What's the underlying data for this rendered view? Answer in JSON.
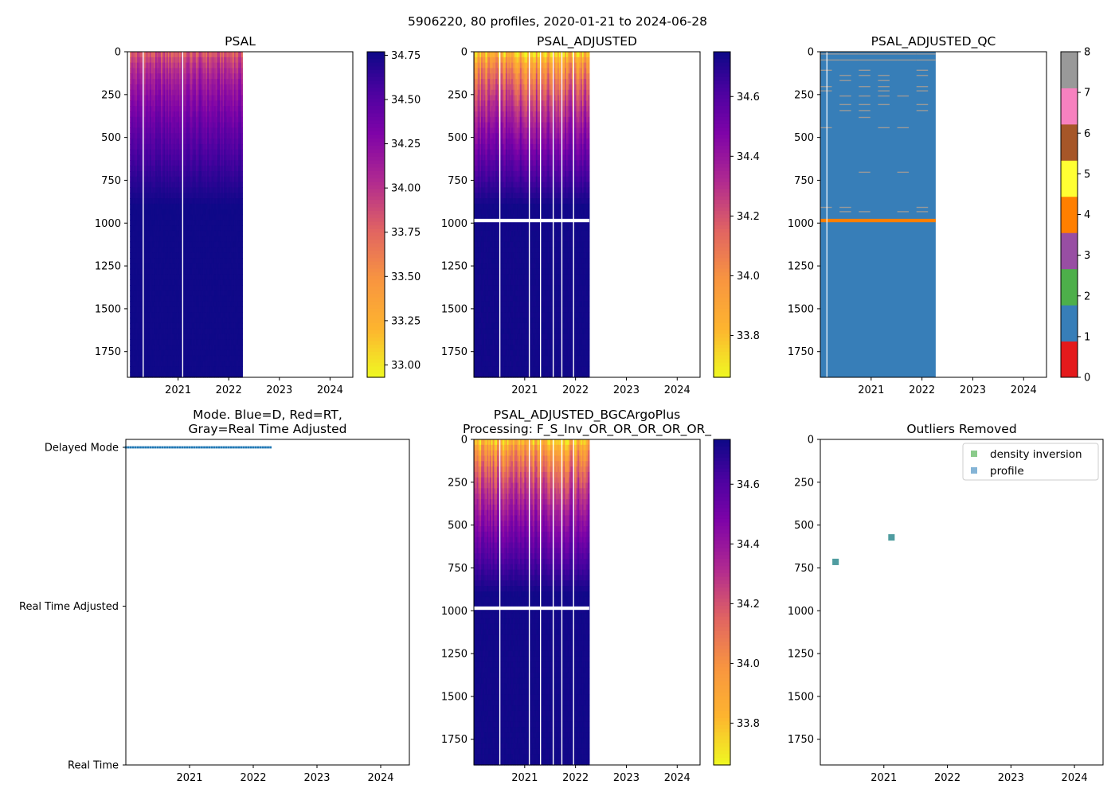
{
  "figure_title": "5906220, 80 profiles, 2020-01-21 to 2024-06-28",
  "chart_data": [
    {
      "type": "heatmap",
      "title": "PSAL",
      "x_range": [
        2020.0,
        2024.45
      ],
      "xticks": [
        "2021",
        "2022",
        "2023",
        "2024"
      ],
      "y_range": [
        0,
        1900
      ],
      "yticks": [
        "0",
        "250",
        "500",
        "750",
        "1000",
        "1250",
        "1500",
        "1750"
      ],
      "data_time_range": [
        2020.05,
        2022.27
      ],
      "colormap": "plasma_r",
      "color_range": [
        32.93,
        34.77
      ],
      "colorbar_ticks": [
        "33.00",
        "33.25",
        "33.50",
        "33.75",
        "34.00",
        "34.25",
        "34.50",
        "34.75"
      ],
      "gap_times": [
        2020.3,
        2021.08
      ],
      "surface_value": 33.7,
      "deep_value": 34.76
    },
    {
      "type": "heatmap",
      "title": "PSAL_ADJUSTED",
      "x_range": [
        2020.0,
        2024.45
      ],
      "xticks": [
        "2021",
        "2022",
        "2023",
        "2024"
      ],
      "y_range": [
        0,
        1900
      ],
      "yticks": [
        "0",
        "250",
        "500",
        "750",
        "1000",
        "1250",
        "1500",
        "1750"
      ],
      "data_time_range": [
        2020.0,
        2022.27
      ],
      "colormap": "plasma_r",
      "color_range": [
        33.66,
        34.75
      ],
      "colorbar_ticks": [
        "33.8",
        "34.0",
        "34.2",
        "34.4",
        "34.6"
      ],
      "gap_times": [
        2020.5,
        2021.08,
        2021.3,
        2021.55,
        2021.72,
        2021.95
      ],
      "missing_depth_band": [
        975,
        995
      ],
      "surface_value": 33.7,
      "deep_value": 34.74
    },
    {
      "type": "heatmap",
      "title": "PSAL_ADJUSTED_QC",
      "x_range": [
        2020.0,
        2024.45
      ],
      "xticks": [
        "2021",
        "2022",
        "2023",
        "2024"
      ],
      "y_range": [
        0,
        1900
      ],
      "yticks": [
        "0",
        "250",
        "500",
        "750",
        "1000",
        "1250",
        "1500",
        "1750"
      ],
      "data_time_range": [
        2020.0,
        2022.27
      ],
      "colormap": "Set1 (discrete)",
      "color_range": [
        0,
        8
      ],
      "colorbar_ticks": [
        "0",
        "1",
        "2",
        "3",
        "4",
        "5",
        "6",
        "7",
        "8"
      ],
      "category_colors": [
        "#e41a1c",
        "#377eb8",
        "#4daf4a",
        "#984ea3",
        "#ff7f00",
        "#ffff33",
        "#a65628",
        "#f781bf",
        "#999999"
      ],
      "dominant_flag": 1,
      "flag4_depth_band": [
        975,
        995
      ],
      "flag8_depths": [
        10,
        45,
        105,
        135,
        165,
        200,
        225,
        255,
        305,
        340,
        380,
        440,
        700,
        905,
        930
      ],
      "gap_times": [
        2020.12
      ]
    },
    {
      "type": "scatter",
      "title": "Mode. Blue=D, Red=RT,\nGray=Real Time Adjusted",
      "title_lines": [
        "Mode. Blue=D, Red=RT,",
        "Gray=Real Time Adjusted"
      ],
      "x_range": [
        2020.0,
        2024.45
      ],
      "xticks": [
        "2021",
        "2022",
        "2023",
        "2024"
      ],
      "categories": [
        "Delayed Mode",
        "Real Time Adjusted",
        "Real Time"
      ],
      "series": [
        {
          "name": "Delayed Mode",
          "color": "#1f77b4",
          "x_range": [
            2020.0,
            2022.27
          ],
          "y": "Delayed Mode"
        }
      ]
    },
    {
      "type": "heatmap",
      "title": "PSAL_ADJUSTED_BGCArgoPlus",
      "title_lines": [
        "PSAL_ADJUSTED_BGCArgoPlus",
        "Processing: F_S_Inv_OR_OR_OR_OR_OR_"
      ],
      "x_range": [
        2020.0,
        2024.45
      ],
      "xticks": [
        "2021",
        "2022",
        "2023",
        "2024"
      ],
      "y_range": [
        0,
        1900
      ],
      "yticks": [
        "0",
        "250",
        "500",
        "750",
        "1000",
        "1250",
        "1500",
        "1750"
      ],
      "data_time_range": [
        2020.0,
        2022.27
      ],
      "colormap": "plasma_r",
      "color_range": [
        33.66,
        34.75
      ],
      "colorbar_ticks": [
        "33.8",
        "34.0",
        "34.2",
        "34.4",
        "34.6"
      ],
      "gap_times": [
        2020.5,
        2021.08,
        2021.3,
        2021.55,
        2021.72,
        2021.95
      ],
      "missing_depth_band": [
        975,
        995
      ],
      "surface_value": 33.7,
      "deep_value": 34.74
    },
    {
      "type": "scatter",
      "title": "Outliers Removed",
      "x_range": [
        2020.0,
        2024.45
      ],
      "xticks": [
        "2021",
        "2022",
        "2023",
        "2024"
      ],
      "y_range": [
        0,
        1900
      ],
      "yticks": [
        "0",
        "250",
        "500",
        "750",
        "1000",
        "1250",
        "1500",
        "1750"
      ],
      "legend_position": "upper right",
      "series": [
        {
          "name": "density inversion",
          "color": "#2ca02c",
          "points": [
            [
              2020.24,
              715
            ],
            [
              2021.12,
              572
            ]
          ]
        },
        {
          "name": "profile",
          "color": "#1f77b4",
          "points": [
            [
              2020.24,
              715
            ],
            [
              2021.12,
              572
            ]
          ]
        }
      ]
    }
  ]
}
